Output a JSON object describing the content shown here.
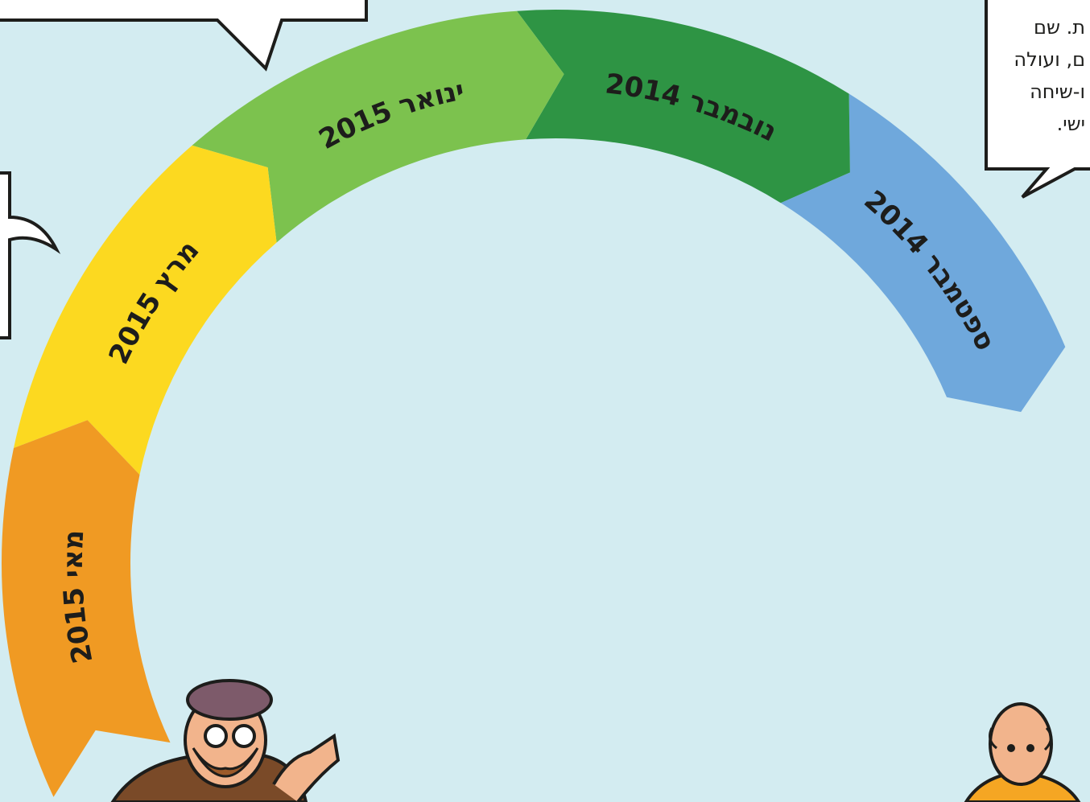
{
  "timeline": {
    "segments": [
      {
        "label": "ספטמבר 2014",
        "color": "#6fa8dc"
      },
      {
        "label": "נובמבר 2014",
        "color": "#2e9444"
      },
      {
        "label": "ינואר 2015",
        "color": "#7cc24e"
      },
      {
        "label": "מרץ 2015",
        "color": "#fcd920"
      },
      {
        "label": "מאי 2015",
        "color": "#f09a23"
      }
    ]
  },
  "bubble": {
    "lines": [
      "ת. שם",
      "ם, ועולה",
      "ו-שיחה",
      "ישי."
    ]
  }
}
